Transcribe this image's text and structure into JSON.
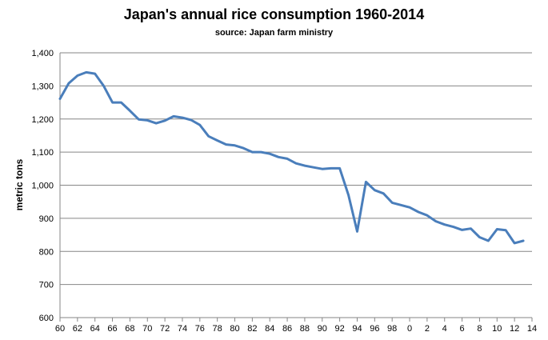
{
  "chart_data": {
    "type": "line",
    "title": "Japan's annual rice consumption  1960-2014",
    "subtitle": "source: Japan farm ministry",
    "ylabel": "metric tons",
    "xlabel": "",
    "ylim": [
      600,
      1400
    ],
    "yticks": [
      "600",
      "700",
      "800",
      "900",
      "1,000",
      "1,100",
      "1,200",
      "1,300",
      "1,400"
    ],
    "xlim": [
      1960,
      2014
    ],
    "xtick_years": [
      1960,
      1962,
      1964,
      1966,
      1968,
      1970,
      1972,
      1974,
      1976,
      1978,
      1980,
      1982,
      1984,
      1986,
      1988,
      1990,
      1992,
      1994,
      1996,
      1998,
      2000,
      2002,
      2004,
      2006,
      2008,
      2010,
      2012,
      2014
    ],
    "xticks": [
      "60",
      "62",
      "64",
      "66",
      "68",
      "70",
      "72",
      "74",
      "76",
      "78",
      "80",
      "82",
      "84",
      "86",
      "88",
      "90",
      "92",
      "94",
      "96",
      "98",
      "0",
      "2",
      "4",
      "6",
      "8",
      "10",
      "12",
      "14"
    ],
    "grid": true,
    "color": "#4a7ebb",
    "x": [
      1960,
      1961,
      1962,
      1963,
      1964,
      1965,
      1966,
      1967,
      1968,
      1969,
      1970,
      1971,
      1972,
      1973,
      1974,
      1975,
      1976,
      1977,
      1978,
      1979,
      1980,
      1981,
      1982,
      1983,
      1984,
      1985,
      1986,
      1987,
      1988,
      1989,
      1990,
      1991,
      1992,
      1993,
      1994,
      1995,
      1996,
      1997,
      1998,
      1999,
      2000,
      2001,
      2002,
      2003,
      2004,
      2005,
      2006,
      2007,
      2008,
      2009,
      2010,
      2011,
      2012,
      2013
    ],
    "values": [
      1261,
      1308,
      1331,
      1341,
      1337,
      1300,
      1250,
      1250,
      1225,
      1199,
      1196,
      1187,
      1195,
      1208,
      1204,
      1197,
      1182,
      1148,
      1135,
      1123,
      1120,
      1112,
      1100,
      1100,
      1095,
      1085,
      1080,
      1066,
      1059,
      1054,
      1049,
      1051,
      1051,
      970,
      860,
      1010,
      985,
      975,
      947,
      940,
      933,
      919,
      909,
      891,
      881,
      874,
      865,
      869,
      843,
      832,
      867,
      864,
      825,
      832
    ]
  }
}
